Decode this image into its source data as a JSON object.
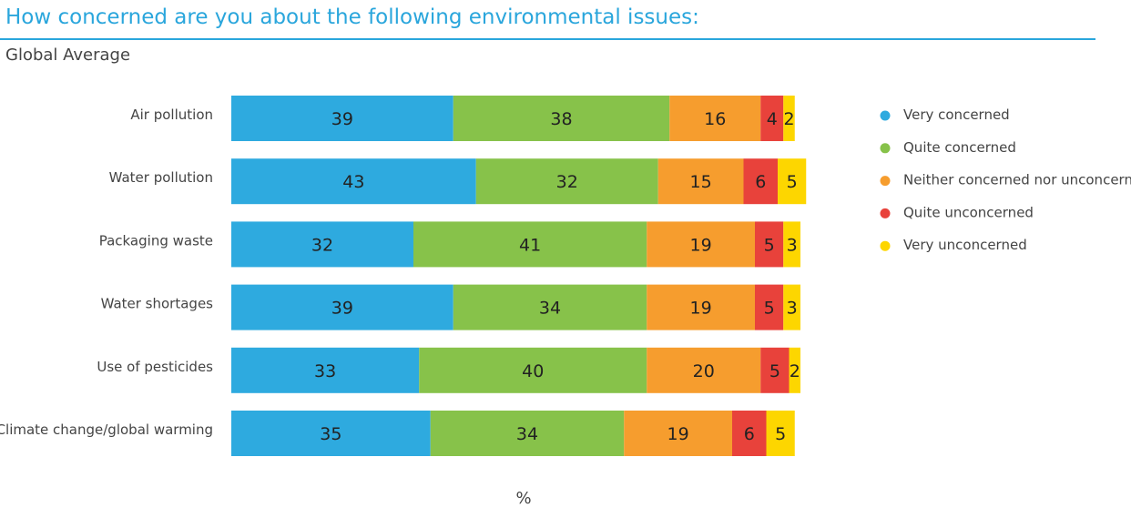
{
  "title": "How concerned are you about the following environmental issues:",
  "subtitle": "Global Average",
  "chart_data": {
    "type": "bar",
    "orientation": "horizontal",
    "stacked": true,
    "xlabel": "%",
    "categories": [
      "Air pollution",
      "Water pollution",
      "Packaging waste",
      "Water shortages",
      "Use of pesticides",
      "Climate change/global warming"
    ],
    "series": [
      {
        "name": "Very concerned",
        "color": "#2eaadf",
        "values": [
          39,
          43,
          32,
          39,
          33,
          35
        ]
      },
      {
        "name": "Quite concerned",
        "color": "#87c24a",
        "values": [
          38,
          32,
          41,
          34,
          40,
          34
        ]
      },
      {
        "name": "Neither concerned nor unconcerned",
        "color": "#f69d2e",
        "values": [
          16,
          15,
          19,
          19,
          20,
          19
        ]
      },
      {
        "name": "Quite unconcerned",
        "color": "#e8423b",
        "values": [
          4,
          6,
          5,
          5,
          5,
          6
        ]
      },
      {
        "name": "Very unconcerned",
        "color": "#fdd600",
        "values": [
          2,
          5,
          3,
          3,
          2,
          5
        ]
      }
    ],
    "legend_position": "right",
    "grid": false
  }
}
